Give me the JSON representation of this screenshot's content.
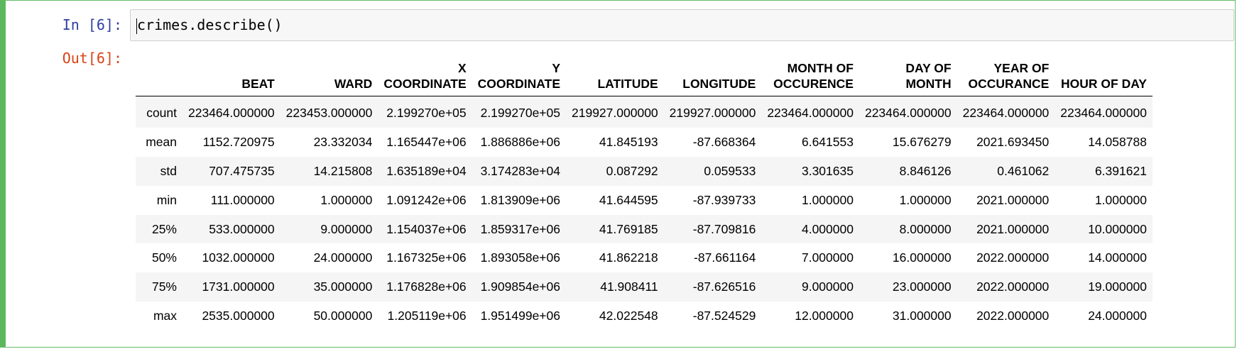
{
  "cell": {
    "in_prompt": "In [6]:",
    "out_prompt": "Out[6]:",
    "code": "crimes.describe()"
  },
  "table": {
    "columns": [
      "",
      "BEAT",
      "WARD",
      "X COORDINATE",
      "Y COORDINATE",
      "LATITUDE",
      "LONGITUDE",
      "MONTH OF OCCURENCE",
      "DAY OF MONTH",
      "YEAR OF OCCURANCE",
      "HOUR OF DAY"
    ],
    "column_lines": [
      [
        ""
      ],
      [
        "BEAT"
      ],
      [
        "WARD"
      ],
      [
        "X",
        "COORDINATE"
      ],
      [
        "Y",
        "COORDINATE"
      ],
      [
        "LATITUDE"
      ],
      [
        "LONGITUDE"
      ],
      [
        "MONTH OF",
        "OCCURENCE"
      ],
      [
        "DAY OF",
        "MONTH"
      ],
      [
        "YEAR OF",
        "OCCURANCE"
      ],
      [
        "HOUR OF DAY"
      ]
    ],
    "rows": [
      [
        "count",
        "223464.000000",
        "223453.000000",
        "2.199270e+05",
        "2.199270e+05",
        "219927.000000",
        "219927.000000",
        "223464.000000",
        "223464.000000",
        "223464.000000",
        "223464.000000"
      ],
      [
        "mean",
        "1152.720975",
        "23.332034",
        "1.165447e+06",
        "1.886886e+06",
        "41.845193",
        "-87.668364",
        "6.641553",
        "15.676279",
        "2021.693450",
        "14.058788"
      ],
      [
        "std",
        "707.475735",
        "14.215808",
        "1.635189e+04",
        "3.174283e+04",
        "0.087292",
        "0.059533",
        "3.301635",
        "8.846126",
        "0.461062",
        "6.391621"
      ],
      [
        "min",
        "111.000000",
        "1.000000",
        "1.091242e+06",
        "1.813909e+06",
        "41.644595",
        "-87.939733",
        "1.000000",
        "1.000000",
        "2021.000000",
        "1.000000"
      ],
      [
        "25%",
        "533.000000",
        "9.000000",
        "1.154037e+06",
        "1.859317e+06",
        "41.769185",
        "-87.709816",
        "4.000000",
        "8.000000",
        "2021.000000",
        "10.000000"
      ],
      [
        "50%",
        "1032.000000",
        "24.000000",
        "1.167325e+06",
        "1.893058e+06",
        "41.862218",
        "-87.661164",
        "7.000000",
        "16.000000",
        "2022.000000",
        "14.000000"
      ],
      [
        "75%",
        "1731.000000",
        "35.000000",
        "1.176828e+06",
        "1.909854e+06",
        "41.908411",
        "-87.626516",
        "9.000000",
        "23.000000",
        "2022.000000",
        "19.000000"
      ],
      [
        "max",
        "2535.000000",
        "50.000000",
        "1.205119e+06",
        "1.951499e+06",
        "42.022548",
        "-87.524529",
        "12.000000",
        "31.000000",
        "2022.000000",
        "24.000000"
      ]
    ]
  },
  "colors": {
    "cell_border": "#5cb85c",
    "in_prompt": "#303f9f",
    "out_prompt": "#d84315",
    "input_bg": "#f7f7f7",
    "row_stripe": "#f5f5f5"
  }
}
